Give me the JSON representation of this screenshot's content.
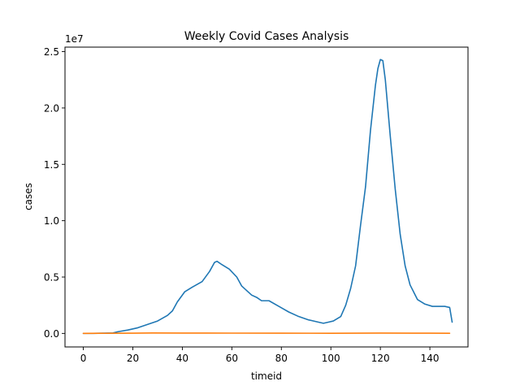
{
  "chart_data": {
    "type": "line",
    "title": "Weekly Covid Cases Analysis",
    "xlabel": "timeid",
    "ylabel": "cases",
    "y_offset_label": "1e7",
    "xlim": [
      -7.4,
      155.4
    ],
    "ylim": [
      -1200000,
      25400000
    ],
    "x_ticks": [
      0,
      20,
      40,
      60,
      80,
      100,
      120,
      140
    ],
    "y_ticks": [
      0,
      5000000,
      10000000,
      15000000,
      20000000,
      25000000
    ],
    "y_tick_labels": [
      "0.0",
      "0.5",
      "1.0",
      "1.5",
      "2.0",
      "2.5"
    ],
    "grid": false,
    "series": [
      {
        "color": "#1f77b4",
        "points": [
          [
            0,
            0
          ],
          [
            4,
            0
          ],
          [
            8,
            20000
          ],
          [
            12,
            40000
          ],
          [
            14,
            150000
          ],
          [
            18,
            300000
          ],
          [
            22,
            500000
          ],
          [
            26,
            800000
          ],
          [
            30,
            1100000
          ],
          [
            34,
            1600000
          ],
          [
            36,
            2000000
          ],
          [
            38,
            2800000
          ],
          [
            41,
            3700000
          ],
          [
            44,
            4100000
          ],
          [
            48,
            4600000
          ],
          [
            51,
            5500000
          ],
          [
            53,
            6300000
          ],
          [
            54,
            6400000
          ],
          [
            56,
            6100000
          ],
          [
            59,
            5700000
          ],
          [
            62,
            5000000
          ],
          [
            64,
            4200000
          ],
          [
            68,
            3400000
          ],
          [
            70,
            3200000
          ],
          [
            72,
            2900000
          ],
          [
            75,
            2900000
          ],
          [
            79,
            2400000
          ],
          [
            83,
            1900000
          ],
          [
            87,
            1500000
          ],
          [
            91,
            1200000
          ],
          [
            95,
            1000000
          ],
          [
            97,
            900000
          ],
          [
            99,
            1000000
          ],
          [
            101,
            1100000
          ],
          [
            104,
            1500000
          ],
          [
            106,
            2500000
          ],
          [
            108,
            4000000
          ],
          [
            110,
            6000000
          ],
          [
            112,
            9600000
          ],
          [
            114,
            13000000
          ],
          [
            116,
            18000000
          ],
          [
            118,
            22000000
          ],
          [
            119,
            23500000
          ],
          [
            120,
            24300000
          ],
          [
            121,
            24200000
          ],
          [
            122,
            22500000
          ],
          [
            124,
            17500000
          ],
          [
            126,
            12800000
          ],
          [
            128,
            8800000
          ],
          [
            130,
            6000000
          ],
          [
            132,
            4300000
          ],
          [
            135,
            3000000
          ],
          [
            138,
            2600000
          ],
          [
            141,
            2400000
          ],
          [
            144,
            2400000
          ],
          [
            146,
            2400000
          ],
          [
            148,
            2300000
          ],
          [
            149,
            1000000
          ]
        ]
      },
      {
        "color": "#ff7f0e",
        "points": [
          [
            0,
            0
          ],
          [
            10,
            10000
          ],
          [
            20,
            20000
          ],
          [
            28,
            40000
          ],
          [
            40,
            30000
          ],
          [
            60,
            25000
          ],
          [
            80,
            20000
          ],
          [
            100,
            15000
          ],
          [
            120,
            30000
          ],
          [
            140,
            20000
          ],
          [
            148,
            15000
          ]
        ]
      }
    ]
  }
}
